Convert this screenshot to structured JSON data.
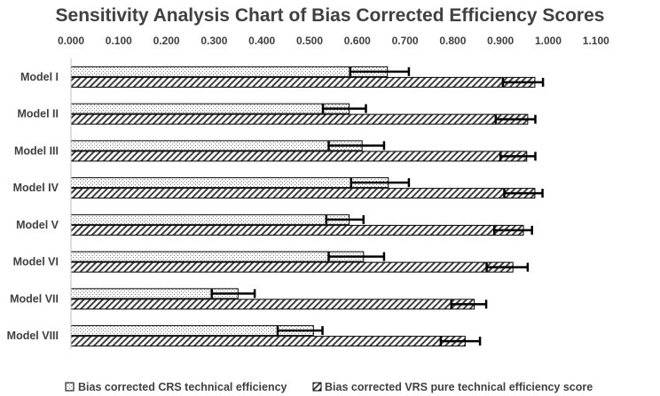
{
  "chart_data": {
    "type": "bar",
    "orientation": "horizontal",
    "title": "Sensitivity Analysis Chart of Bias Corrected Efficiency Scores",
    "xlim": [
      0,
      1.1
    ],
    "x_ticks": [
      "0.000",
      "0.100",
      "0.200",
      "0.300",
      "0.400",
      "0.500",
      "0.600",
      "0.700",
      "0.800",
      "0.900",
      "1.000",
      "1.100"
    ],
    "categories": [
      "Model I",
      "Model II",
      "Model III",
      "Model IV",
      "Model V",
      "Model VI",
      "Model VII",
      "Model VIII"
    ],
    "series": [
      {
        "name": "Bias corrected CRS technical efficiency",
        "pattern": "dots",
        "values": [
          0.663,
          0.583,
          0.61,
          0.665,
          0.583,
          0.613,
          0.35,
          0.508
        ],
        "err_low": [
          0.585,
          0.528,
          0.54,
          0.587,
          0.535,
          0.54,
          0.295,
          0.433
        ],
        "err_high": [
          0.708,
          0.618,
          0.656,
          0.708,
          0.613,
          0.656,
          0.385,
          0.527
        ]
      },
      {
        "name": "Bias corrected VRS pure technical efficiency score",
        "pattern": "hatch",
        "values": [
          0.972,
          0.957,
          0.955,
          0.972,
          0.948,
          0.926,
          0.845,
          0.826
        ],
        "err_low": [
          0.905,
          0.89,
          0.9,
          0.908,
          0.887,
          0.871,
          0.797,
          0.775
        ],
        "err_high": [
          0.989,
          0.973,
          0.973,
          0.988,
          0.966,
          0.957,
          0.87,
          0.857
        ]
      }
    ],
    "legend_position": "bottom"
  }
}
